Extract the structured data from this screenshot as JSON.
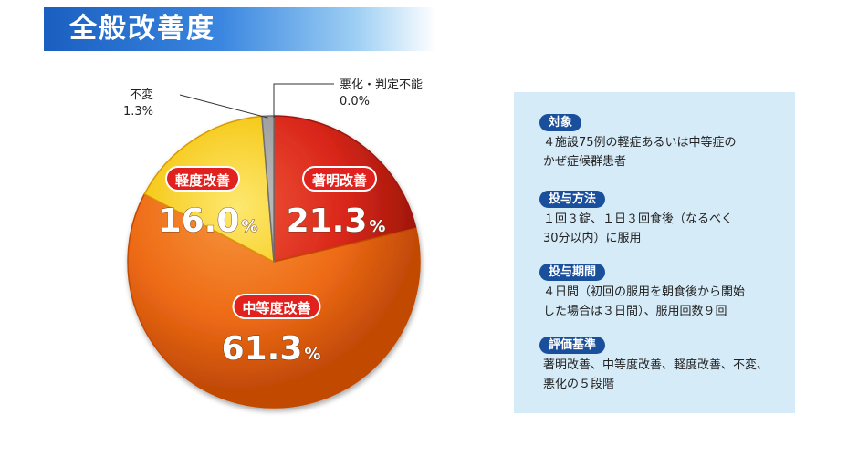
{
  "title": "全般改善度",
  "chart_data": {
    "type": "pie",
    "slices": [
      {
        "label": "著明改善",
        "value": 21.3,
        "value_text": "21.3",
        "color": "#d9261a",
        "dark": "#9c1608",
        "light": "#f0563a"
      },
      {
        "label": "中等度改善",
        "value": 61.3,
        "value_text": "61.3",
        "color": "#ee6b16",
        "dark": "#c24a06",
        "light": "#f6963e"
      },
      {
        "label": "軽度改善",
        "value": 16.0,
        "value_text": "16.0",
        "color": "#f5c50d",
        "dark": "#d99a00",
        "light": "#fde870"
      },
      {
        "label": "不変",
        "value": 1.3,
        "value_text": "1.3%",
        "color": "#9a9a9a",
        "dark": "#6f6f6f",
        "light": "#c4c4c4"
      },
      {
        "label": "悪化・判定不能",
        "value": 0.0,
        "value_text": "0.0%",
        "color": "#777777",
        "dark": "#555555",
        "light": "#999999"
      }
    ],
    "unit": "%",
    "start": "top",
    "direction": "clockwise"
  },
  "info": {
    "sections": [
      {
        "heading": "対象",
        "text": "４施設75例の軽症あるいは中等症の\nかぜ症候群患者"
      },
      {
        "heading": "投与方法",
        "text": "１回３錠、１日３回食後（なるべく\n30分以内）に服用"
      },
      {
        "heading": "投与期間",
        "text": "４日間（初回の服用を朝食後から開始\nした場合は３日間）、服用回数９回"
      },
      {
        "heading": "評価基準",
        "text": "著明改善、中等度改善、軽度改善、不変、\n悪化の５段階"
      }
    ]
  }
}
